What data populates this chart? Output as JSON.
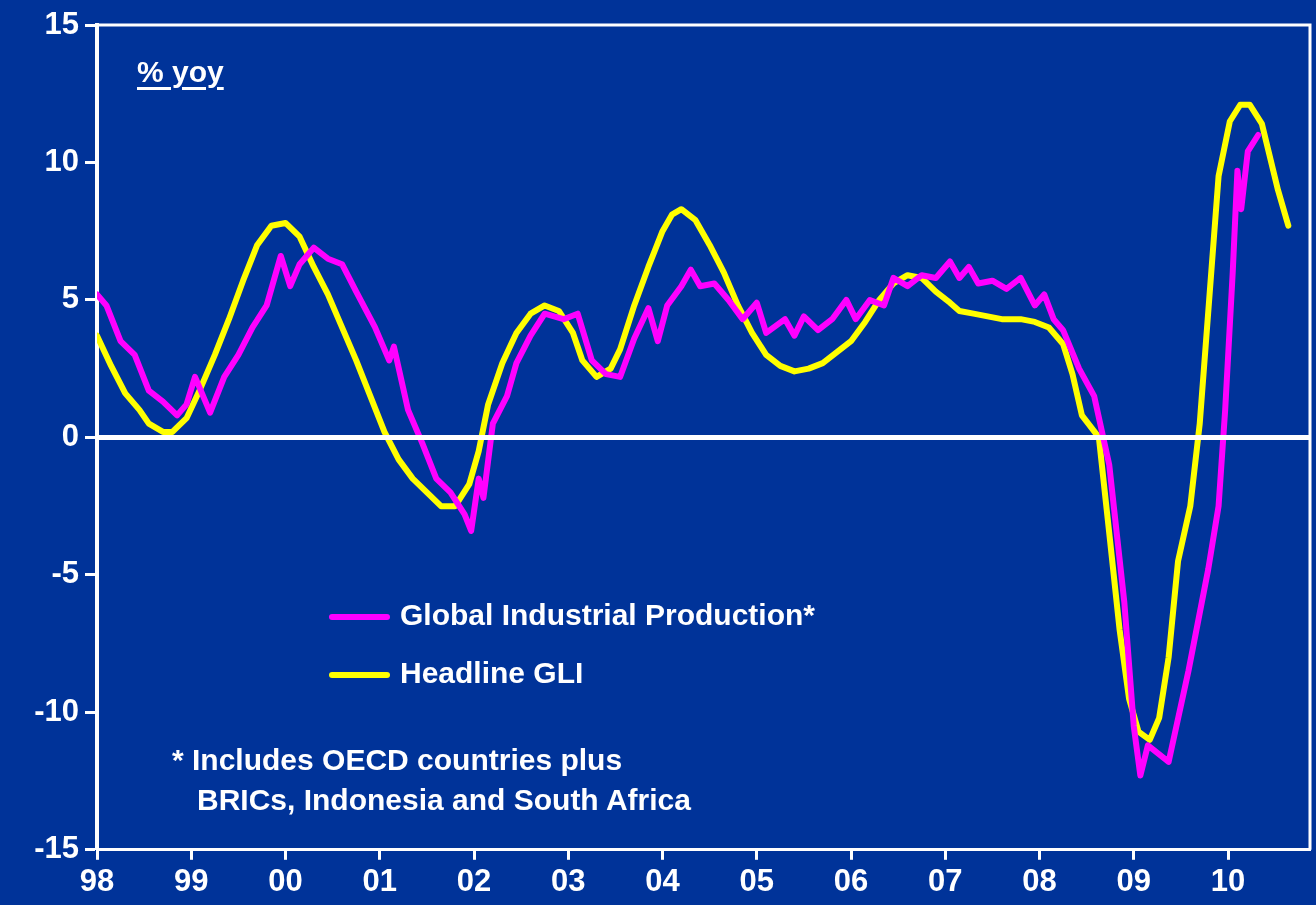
{
  "chart_data": {
    "type": "line",
    "ylabel": "% yoy",
    "xlim": [
      1998,
      2010.87
    ],
    "xticks": [
      {
        "value": 1998,
        "label": "98"
      },
      {
        "value": 1999,
        "label": "99"
      },
      {
        "value": 2000,
        "label": "00"
      },
      {
        "value": 2001,
        "label": "01"
      },
      {
        "value": 2002,
        "label": "02"
      },
      {
        "value": 2003,
        "label": "03"
      },
      {
        "value": 2004,
        "label": "04"
      },
      {
        "value": 2005,
        "label": "05"
      },
      {
        "value": 2006,
        "label": "06"
      },
      {
        "value": 2007,
        "label": "07"
      },
      {
        "value": 2008,
        "label": "08"
      },
      {
        "value": 2009,
        "label": "09"
      },
      {
        "value": 2010,
        "label": "10"
      }
    ],
    "ylim": [
      -15,
      15
    ],
    "yticks": [
      -15,
      -10,
      -5,
      0,
      5,
      10,
      15
    ],
    "grid": false,
    "legend": "bottom left",
    "marker": "none",
    "line_style": "solid",
    "ref_lines": [
      {
        "axis": "y",
        "value": 0,
        "color": "#ffffff"
      }
    ],
    "annotations": [
      "* Includes OECD countries plus\n   BRICs, Indonesia and South Africa"
    ],
    "series": [
      {
        "name": "Global Industrial Production*",
        "color": "#ff00ff",
        "x": [
          1998.0,
          1998.1,
          1998.25,
          1998.4,
          1998.55,
          1998.7,
          1998.85,
          1998.95,
          1999.04,
          1999.2,
          1999.35,
          1999.5,
          1999.65,
          1999.8,
          1999.95,
          2000.05,
          2000.15,
          2000.3,
          2000.45,
          2000.6,
          2000.75,
          2000.95,
          2001.1,
          2001.15,
          2001.3,
          2001.45,
          2001.6,
          2001.75,
          2001.9,
          2001.97,
          2002.05,
          2002.1,
          2002.2,
          2002.35,
          2002.45,
          2002.6,
          2002.75,
          2002.95,
          2003.1,
          2003.25,
          2003.4,
          2003.55,
          2003.7,
          2003.85,
          2003.95,
          2004.05,
          2004.2,
          2004.3,
          2004.4,
          2004.55,
          2004.7,
          2004.85,
          2005.0,
          2005.1,
          2005.3,
          2005.4,
          2005.5,
          2005.65,
          2005.8,
          2005.95,
          2006.05,
          2006.2,
          2006.35,
          2006.45,
          2006.6,
          2006.75,
          2006.9,
          2007.05,
          2007.15,
          2007.25,
          2007.35,
          2007.5,
          2007.65,
          2007.8,
          2007.95,
          2008.05,
          2008.15,
          2008.25,
          2008.42,
          2008.58,
          2008.74,
          2008.9,
          2009.0,
          2009.07,
          2009.15,
          2009.37,
          2009.58,
          2009.79,
          2009.9,
          2009.97,
          2010.05,
          2010.1,
          2010.14,
          2010.21,
          2010.32
        ],
        "values": [
          5.2,
          4.8,
          3.5,
          3.0,
          1.7,
          1.3,
          0.8,
          1.2,
          2.2,
          0.9,
          2.2,
          3.0,
          4.0,
          4.8,
          6.6,
          5.5,
          6.3,
          6.9,
          6.5,
          6.3,
          5.3,
          4.0,
          2.8,
          3.3,
          1.0,
          -0.2,
          -1.5,
          -2.0,
          -2.8,
          -3.4,
          -1.5,
          -2.2,
          0.5,
          1.5,
          2.7,
          3.7,
          4.5,
          4.3,
          4.5,
          2.8,
          2.3,
          2.2,
          3.6,
          4.7,
          3.5,
          4.8,
          5.5,
          6.1,
          5.5,
          5.6,
          5.0,
          4.3,
          4.9,
          3.8,
          4.3,
          3.7,
          4.4,
          3.9,
          4.3,
          5.0,
          4.3,
          5.0,
          4.8,
          5.8,
          5.5,
          5.9,
          5.8,
          6.4,
          5.8,
          6.2,
          5.6,
          5.7,
          5.4,
          5.8,
          4.8,
          5.2,
          4.3,
          3.9,
          2.5,
          1.5,
          -1.0,
          -6.0,
          -10.5,
          -12.3,
          -11.2,
          -11.8,
          -8.5,
          -4.8,
          -2.5,
          1.0,
          6.0,
          9.7,
          8.3,
          10.4,
          11.0
        ]
      },
      {
        "name": "Headline GLI",
        "color": "#ffff00",
        "x": [
          1998.0,
          1998.15,
          1998.3,
          1998.45,
          1998.55,
          1998.7,
          1998.8,
          1998.95,
          1999.1,
          1999.25,
          1999.4,
          1999.55,
          1999.7,
          1999.85,
          2000.0,
          2000.15,
          2000.3,
          2000.45,
          2000.6,
          2000.75,
          2000.9,
          2001.05,
          2001.2,
          2001.35,
          2001.5,
          2001.65,
          2001.8,
          2001.95,
          2002.05,
          2002.15,
          2002.3,
          2002.45,
          2002.6,
          2002.75,
          2002.9,
          2003.05,
          2003.15,
          2003.3,
          2003.45,
          2003.55,
          2003.7,
          2003.85,
          2004.0,
          2004.1,
          2004.2,
          2004.35,
          2004.5,
          2004.65,
          2004.8,
          2004.95,
          2005.1,
          2005.25,
          2005.4,
          2005.55,
          2005.7,
          2005.85,
          2006.0,
          2006.15,
          2006.3,
          2006.45,
          2006.6,
          2006.75,
          2006.9,
          2007.05,
          2007.15,
          2007.3,
          2007.45,
          2007.6,
          2007.8,
          2007.95,
          2008.1,
          2008.25,
          2008.35,
          2008.45,
          2008.63,
          2008.75,
          2008.85,
          2008.95,
          2009.05,
          2009.17,
          2009.27,
          2009.37,
          2009.47,
          2009.6,
          2009.7,
          2009.8,
          2009.9,
          2010.02,
          2010.13,
          2010.23,
          2010.36,
          2010.53,
          2010.64
        ],
        "values": [
          3.7,
          2.6,
          1.6,
          1.0,
          0.5,
          0.2,
          0.2,
          0.7,
          1.8,
          3.0,
          4.3,
          5.7,
          7.0,
          7.7,
          7.8,
          7.3,
          6.2,
          5.2,
          4.0,
          2.8,
          1.5,
          0.2,
          -0.8,
          -1.5,
          -2.0,
          -2.5,
          -2.5,
          -1.7,
          -0.5,
          1.2,
          2.7,
          3.8,
          4.5,
          4.8,
          4.6,
          3.8,
          2.8,
          2.2,
          2.5,
          3.2,
          4.8,
          6.2,
          7.5,
          8.1,
          8.3,
          7.9,
          7.0,
          6.0,
          4.8,
          3.8,
          3.0,
          2.6,
          2.4,
          2.5,
          2.7,
          3.1,
          3.5,
          4.2,
          5.0,
          5.6,
          5.9,
          5.8,
          5.3,
          4.9,
          4.6,
          4.5,
          4.4,
          4.3,
          4.3,
          4.2,
          4.0,
          3.4,
          2.3,
          0.8,
          0.0,
          -3.8,
          -7.0,
          -9.5,
          -10.7,
          -11.0,
          -10.2,
          -8.0,
          -4.5,
          -2.5,
          0.5,
          5.0,
          9.5,
          11.5,
          12.1,
          12.1,
          11.4,
          9.0,
          7.7
        ]
      }
    ]
  }
}
